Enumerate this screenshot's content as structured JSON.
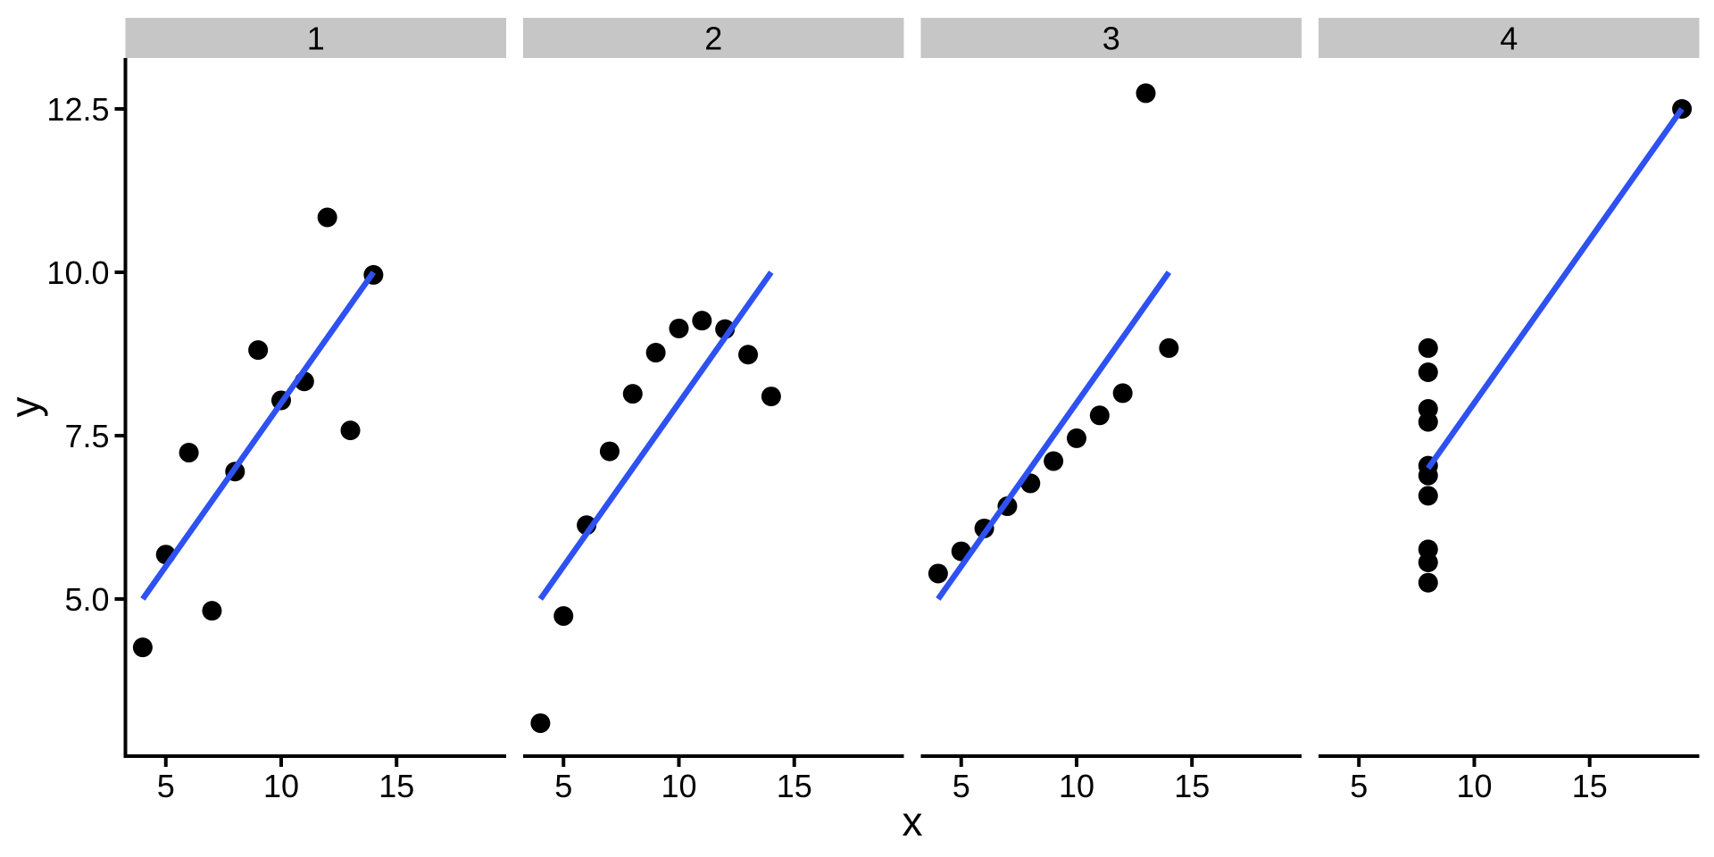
{
  "chart_data": {
    "type": "scatter",
    "title": "",
    "xlabel": "x",
    "ylabel": "y",
    "grid": false,
    "legend": "none",
    "x_ticks": [
      {
        "value": 5,
        "label": "5"
      },
      {
        "value": 10,
        "label": "10"
      },
      {
        "value": 15,
        "label": "15"
      }
    ],
    "y_ticks": [
      {
        "value": 5.0,
        "label": "5.0"
      },
      {
        "value": 7.5,
        "label": "7.5"
      },
      {
        "value": 10.0,
        "label": "10.0"
      },
      {
        "value": 12.5,
        "label": "12.5"
      }
    ],
    "x_domain": [
      3.25,
      19.75
    ],
    "y_domain": [
      2.6,
      13.28
    ],
    "facets": [
      {
        "label": "1",
        "points": [
          [
            10,
            8.04
          ],
          [
            8,
            6.95
          ],
          [
            13,
            7.58
          ],
          [
            9,
            8.81
          ],
          [
            11,
            8.33
          ],
          [
            14,
            9.96
          ],
          [
            6,
            7.24
          ],
          [
            4,
            4.26
          ],
          [
            12,
            10.84
          ],
          [
            7,
            4.82
          ],
          [
            5,
            5.68
          ]
        ],
        "regression_line": {
          "x1": 4,
          "y1": 5.0,
          "x2": 14,
          "y2": 10.0
        }
      },
      {
        "label": "2",
        "points": [
          [
            10,
            9.14
          ],
          [
            8,
            8.14
          ],
          [
            13,
            8.74
          ],
          [
            9,
            8.77
          ],
          [
            11,
            9.26
          ],
          [
            14,
            8.1
          ],
          [
            6,
            6.13
          ],
          [
            4,
            3.1
          ],
          [
            12,
            9.13
          ],
          [
            7,
            7.26
          ],
          [
            5,
            4.74
          ]
        ],
        "regression_line": {
          "x1": 4,
          "y1": 5.0,
          "x2": 14,
          "y2": 10.0
        }
      },
      {
        "label": "3",
        "points": [
          [
            10,
            7.46
          ],
          [
            8,
            6.77
          ],
          [
            13,
            12.74
          ],
          [
            9,
            7.11
          ],
          [
            11,
            7.81
          ],
          [
            14,
            8.84
          ],
          [
            6,
            6.08
          ],
          [
            4,
            5.39
          ],
          [
            12,
            8.15
          ],
          [
            7,
            6.42
          ],
          [
            5,
            5.73
          ]
        ],
        "regression_line": {
          "x1": 4,
          "y1": 5.0,
          "x2": 14,
          "y2": 10.0
        }
      },
      {
        "label": "4",
        "points": [
          [
            8,
            6.58
          ],
          [
            8,
            5.76
          ],
          [
            8,
            7.71
          ],
          [
            8,
            8.84
          ],
          [
            8,
            8.47
          ],
          [
            8,
            7.04
          ],
          [
            8,
            5.25
          ],
          [
            19,
            12.5
          ],
          [
            8,
            5.56
          ],
          [
            8,
            7.91
          ],
          [
            8,
            6.89
          ]
        ],
        "regression_line": {
          "x1": 8,
          "y1": 7.0,
          "x2": 19,
          "y2": 12.5
        }
      }
    ],
    "colors": {
      "point": "#000000",
      "smooth_line": "#2E51F2",
      "strip_fill": "#C6C6C6",
      "axis_line": "#000000",
      "text": "#000000",
      "background": "#FFFFFF"
    }
  }
}
